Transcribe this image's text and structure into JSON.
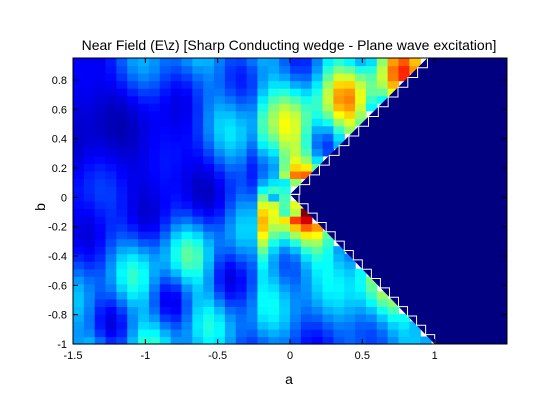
{
  "chart_data": {
    "type": "heatmap",
    "title": "Near Field (E\\z) [Sharp Conducting wedge - Plane wave excitation]",
    "xlabel": "a",
    "ylabel": "b",
    "xlim": [
      -1.5,
      1.5
    ],
    "ylim": [
      -1,
      0.95
    ],
    "x_ticks": [
      -1.5,
      -1,
      -0.5,
      0,
      0.5,
      1
    ],
    "y_ticks": [
      0.8,
      0.6,
      0.4,
      0.2,
      0,
      -0.2,
      -0.4,
      -0.6,
      -0.8,
      -1
    ],
    "x_tick_labels": [
      "-1.5",
      "-1",
      "-0.5",
      "0",
      "0.5",
      "1"
    ],
    "y_tick_labels": [
      "0.8",
      "0.6",
      "0.4",
      "0.2",
      "0",
      "-0.2",
      "-0.4",
      "-0.6",
      "-0.8",
      "-1"
    ],
    "grid": false,
    "colormap": "jet",
    "wedge_color": "#000080",
    "wedge_boundary_color": "#ffffff",
    "wedge_vertex": [
      0,
      0.02
    ],
    "wedge_upper_edge_end": [
      0.95,
      0.95
    ],
    "wedge_lower_edge_end": [
      1.0,
      -1.0
    ]
  }
}
